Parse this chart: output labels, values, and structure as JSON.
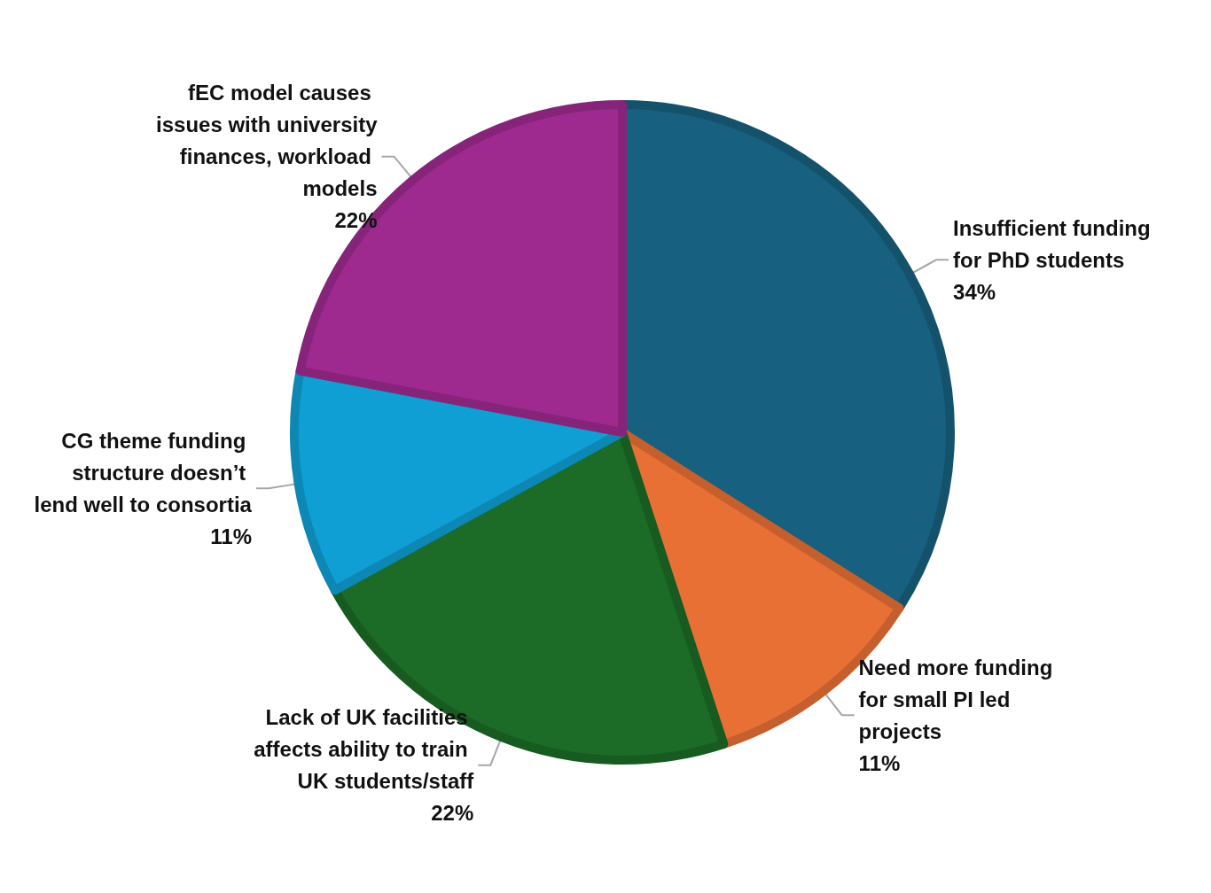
{
  "chart_data": {
    "type": "pie",
    "categories": [
      "Insufficient funding for PhD students",
      "Need more funding for small PI led projects",
      "Lack of UK facilities affects ability to train UK students/staff",
      "CG theme funding structure doesn’t lend well to consortia",
      "fEC model causes issues with university finances, workload models"
    ],
    "values": [
      34,
      11,
      22,
      11,
      22
    ],
    "value_labels": [
      "34%",
      "11%",
      "22%",
      "11%",
      "22%"
    ],
    "colors": [
      "#17607f",
      "#e87035",
      "#1c6b27",
      "#0f9fd4",
      "#9e2a8f"
    ],
    "legend": false
  }
}
